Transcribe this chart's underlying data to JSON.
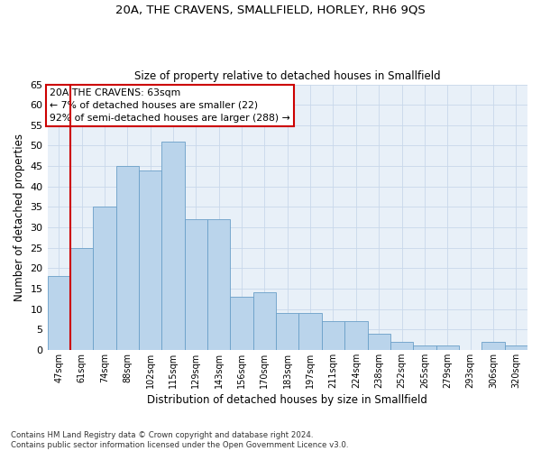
{
  "title1": "20A, THE CRAVENS, SMALLFIELD, HORLEY, RH6 9QS",
  "title2": "Size of property relative to detached houses in Smallfield",
  "xlabel": "Distribution of detached houses by size in Smallfield",
  "ylabel": "Number of detached properties",
  "categories": [
    "47sqm",
    "61sqm",
    "74sqm",
    "88sqm",
    "102sqm",
    "115sqm",
    "129sqm",
    "143sqm",
    "156sqm",
    "170sqm",
    "183sqm",
    "197sqm",
    "211sqm",
    "224sqm",
    "238sqm",
    "252sqm",
    "265sqm",
    "279sqm",
    "293sqm",
    "306sqm",
    "320sqm"
  ],
  "values": [
    18,
    25,
    35,
    45,
    44,
    51,
    32,
    32,
    13,
    14,
    9,
    9,
    7,
    7,
    4,
    2,
    1,
    1,
    0,
    2,
    1
  ],
  "bar_color": "#bad4eb",
  "bar_edge_color": "#6a9fc8",
  "redline_index": 1,
  "annotation_box_text": "20A THE CRAVENS: 63sqm\n← 7% of detached houses are smaller (22)\n92% of semi-detached houses are larger (288) →",
  "annotation_box_color": "#cc0000",
  "ylim": [
    0,
    65
  ],
  "yticks": [
    0,
    5,
    10,
    15,
    20,
    25,
    30,
    35,
    40,
    45,
    50,
    55,
    60,
    65
  ],
  "grid_color": "#c8d8ea",
  "bg_color": "#e8f0f8",
  "footnote": "Contains HM Land Registry data © Crown copyright and database right 2024.\nContains public sector information licensed under the Open Government Licence v3.0."
}
